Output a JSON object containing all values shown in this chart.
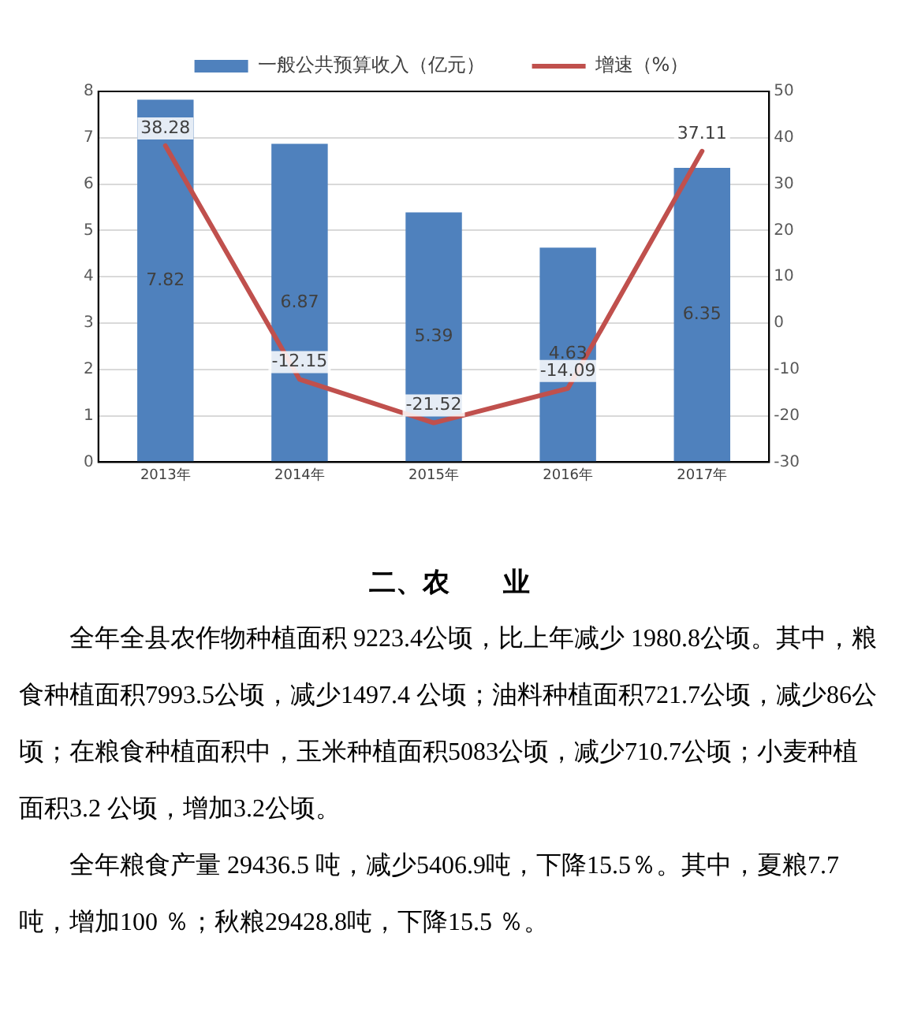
{
  "chart_data": {
    "type": "bar",
    "categories": [
      "2013年",
      "2014年",
      "2015年",
      "2016年",
      "2017年"
    ],
    "series": [
      {
        "name": "一般公共预算收入（亿元）",
        "color": "#4f81bd",
        "values": [
          7.82,
          6.87,
          5.39,
          4.63,
          6.35
        ]
      },
      {
        "name": "增速（%）",
        "type": "line",
        "axis": "y2",
        "color": "#c0504d",
        "values": [
          38.28,
          -12.15,
          -21.52,
          -14.09,
          37.11
        ]
      }
    ],
    "ylim": [
      0,
      8
    ],
    "yticks": [
      0,
      1,
      2,
      3,
      4,
      5,
      6,
      7,
      8
    ],
    "y2lim": [
      -30,
      50
    ],
    "y2ticks": [
      -30,
      -20,
      -10,
      0,
      10,
      20,
      30,
      40,
      50
    ],
    "grid": "y",
    "legend": "top",
    "data_labels": true,
    "marker": "none",
    "line_style": "solid",
    "annotations": [
      "二、农　　业",
      "全年全县农作物种植面积 9223.4公顷，比上年减少 1980.8公顷。其中，粮食种植面积7993.5公顷，减少1497.4 公顷；油料种植面积721.7公顷，减少86公顷；在粮食种植面积中，玉米种植面积5083公顷，减少710.7公顷；小麦种植面积3.2 公顷，增加3.2公顷。",
      "全年粮食产量 29436.5 吨，减少5406.9吨，下降15.5％。其中，夏粮7.7吨，增加100 ％；秋粮29428.8吨，下降15.5 ％。"
    ]
  }
}
